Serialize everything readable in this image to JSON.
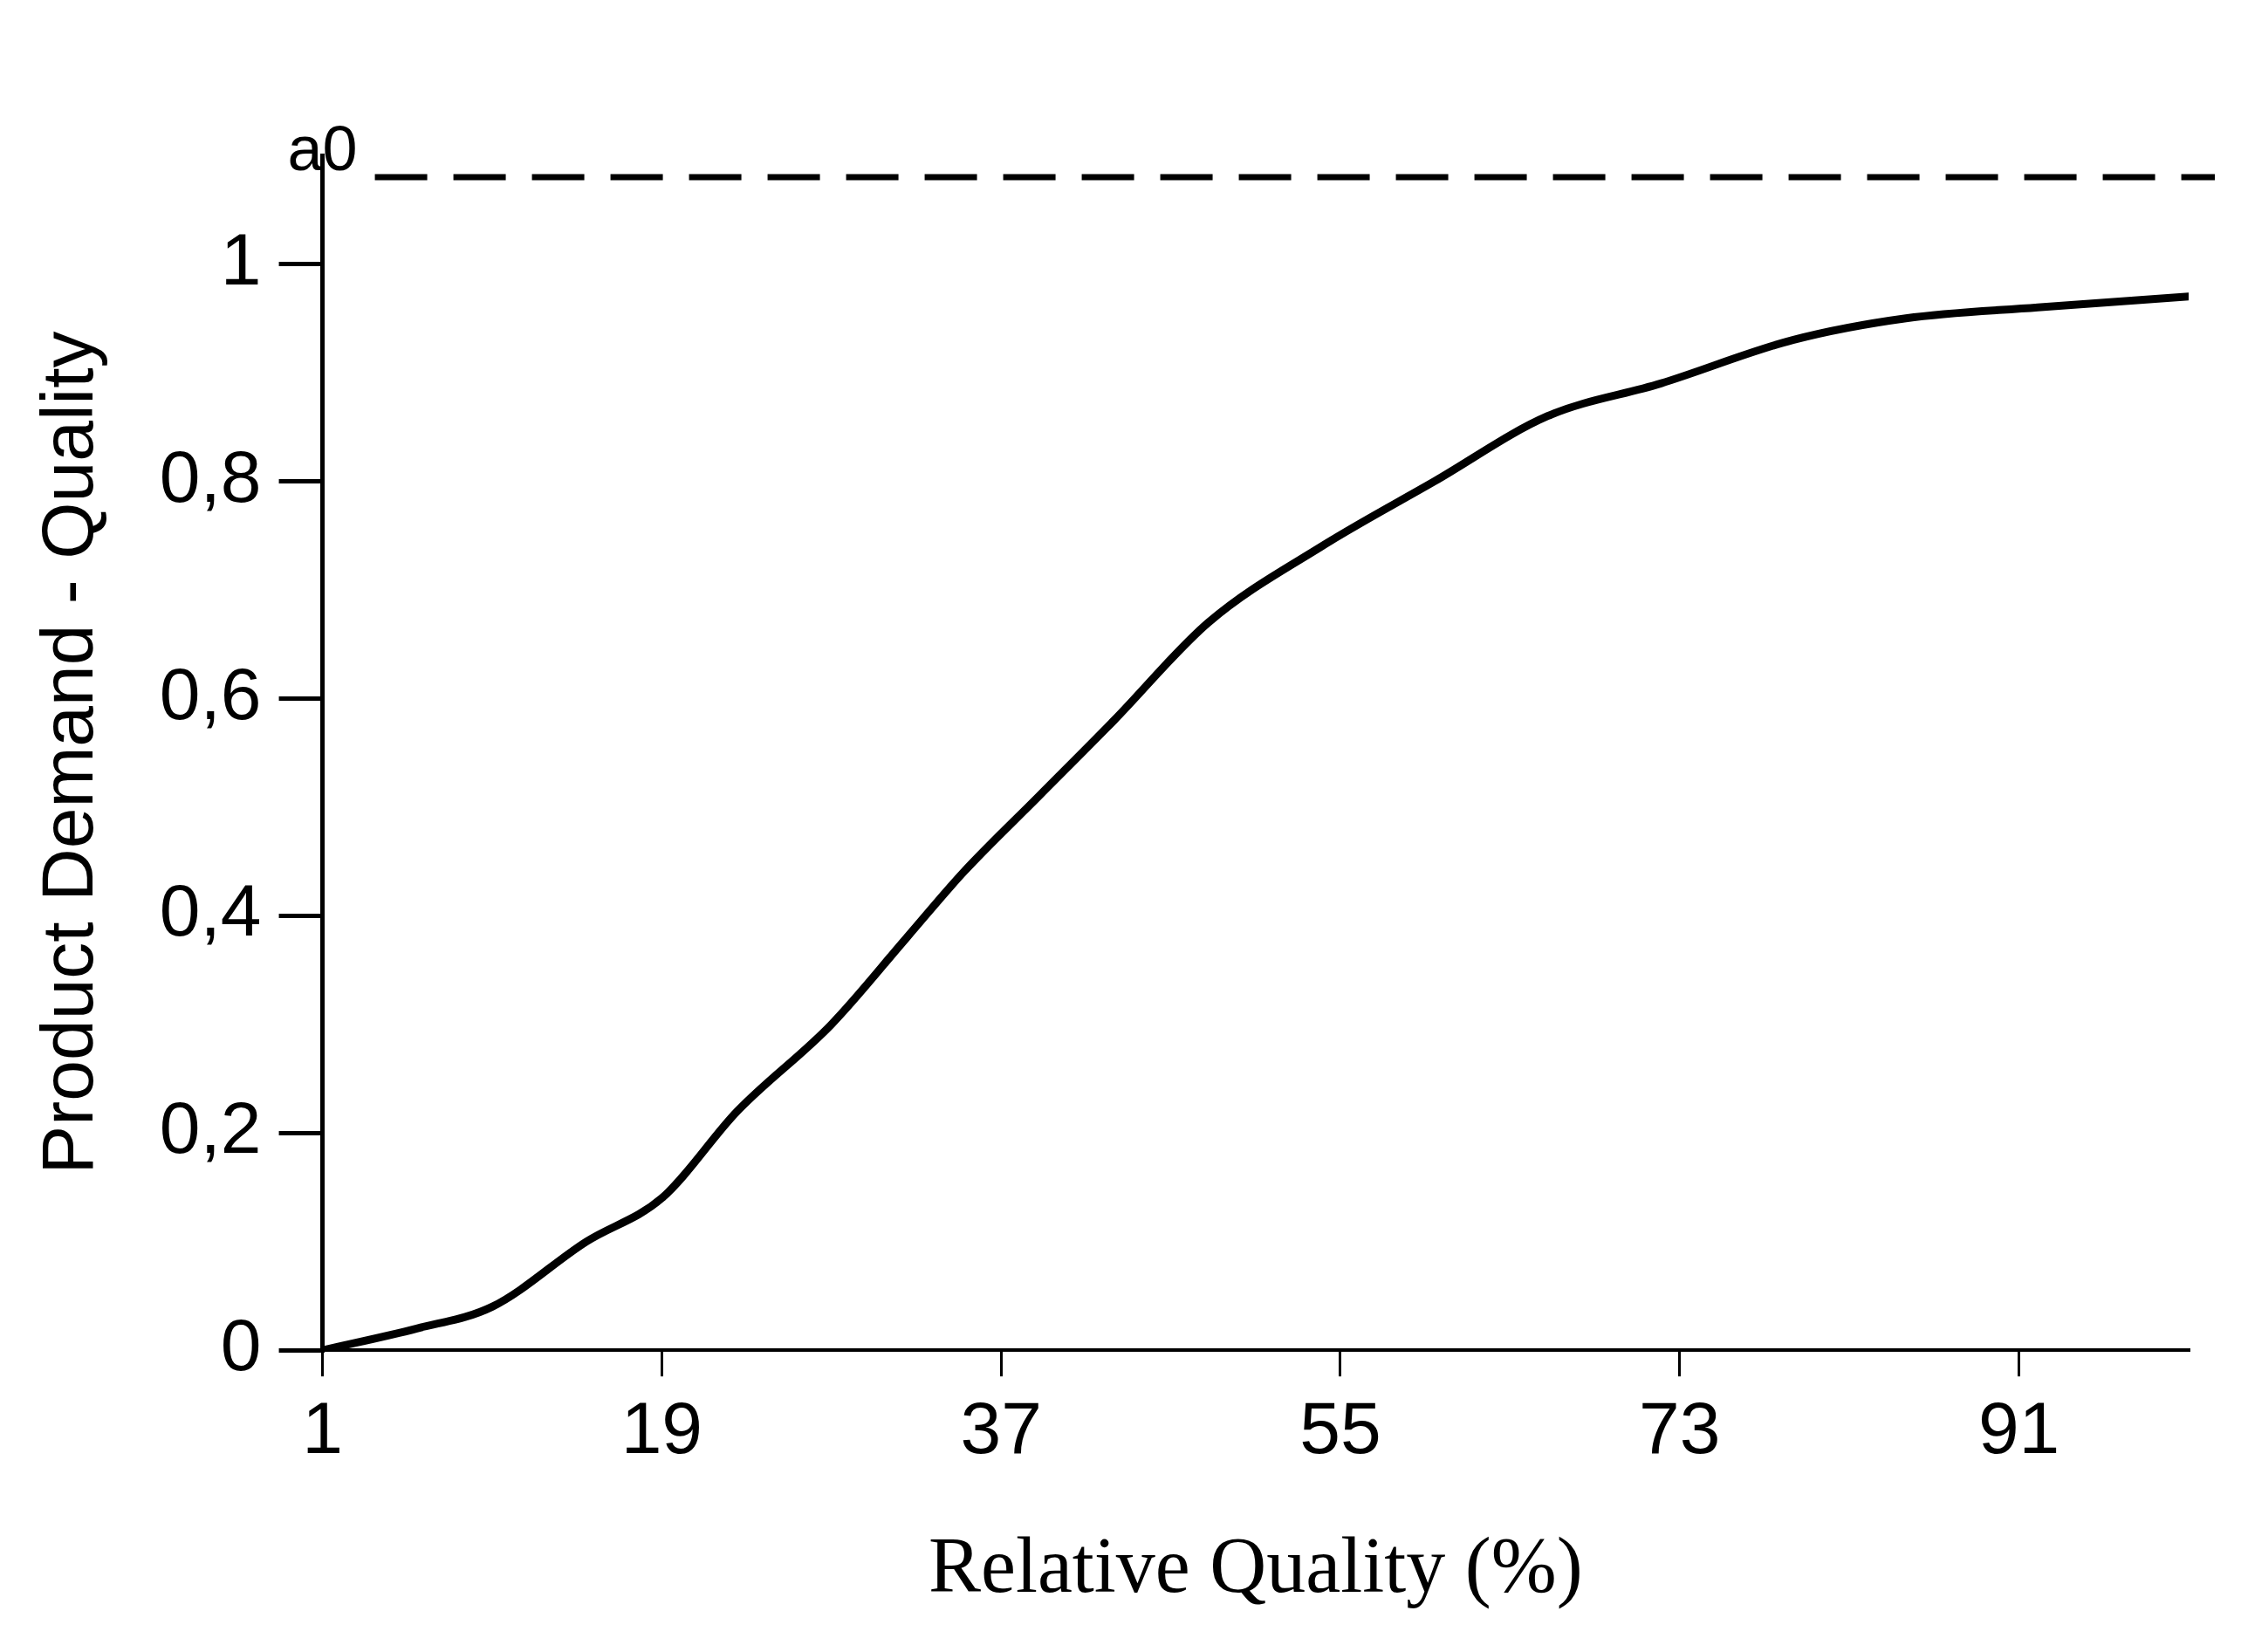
{
  "chart_data": {
    "type": "line",
    "xlabel": "Relative Quality (%)",
    "ylabel": "Product Demand - Quality",
    "xlim": [
      1,
      100
    ],
    "ylim": [
      0,
      1.1
    ],
    "xticks": [
      1,
      19,
      37,
      55,
      73,
      91
    ],
    "yticks": [
      0,
      {
        "value": 0.2,
        "label": "0,2"
      },
      {
        "value": 0.4,
        "label": "0,4"
      },
      {
        "value": 0.6,
        "label": "0,6"
      },
      {
        "value": 0.8,
        "label": "0,8"
      },
      1
    ],
    "x": [
      1,
      6,
      10,
      15,
      19,
      23,
      28,
      32,
      35,
      39,
      43,
      48,
      54,
      60,
      66,
      72,
      79,
      85,
      92,
      100
    ],
    "series": [
      {
        "color": "#000000",
        "values": [
          0,
          0.02,
          0.04,
          0.1,
          0.14,
          0.22,
          0.3,
          0.38,
          0.44,
          0.51,
          0.58,
          0.67,
          0.74,
          0.8,
          0.86,
          0.89,
          0.93,
          0.95,
          0.96,
          0.97
        ]
      }
    ],
    "ref_lines": [
      {
        "axis": "y",
        "value": 1.08,
        "label": "a0",
        "line_style": "dashed",
        "color": "#000000"
      }
    ],
    "grid": false,
    "legend": false,
    "marker": "none",
    "line_style": "solid"
  }
}
